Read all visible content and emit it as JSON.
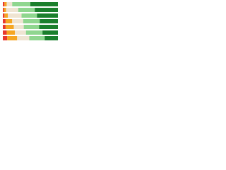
{
  "chart_data": {
    "type": "stacked-bar-horizontal",
    "categories": [
      null,
      null,
      null,
      null,
      null,
      null,
      null
    ],
    "xlim": [
      0,
      100
    ],
    "series": [
      {
        "color": "#e8392f",
        "values": [
          3,
          2,
          3,
          5,
          5,
          7,
          8
        ]
      },
      {
        "color": "#f5a623",
        "values": [
          4,
          4,
          6,
          12,
          15,
          15,
          18
        ]
      },
      {
        "color": "#efe4d2",
        "values": [
          10,
          22,
          25,
          20,
          18,
          20,
          22
        ]
      },
      {
        "color": "#8fd68f",
        "values": [
          33,
          30,
          28,
          30,
          28,
          30,
          28
        ]
      },
      {
        "color": "#1b7f2c",
        "values": [
          50,
          42,
          38,
          33,
          34,
          28,
          24
        ]
      }
    ]
  }
}
